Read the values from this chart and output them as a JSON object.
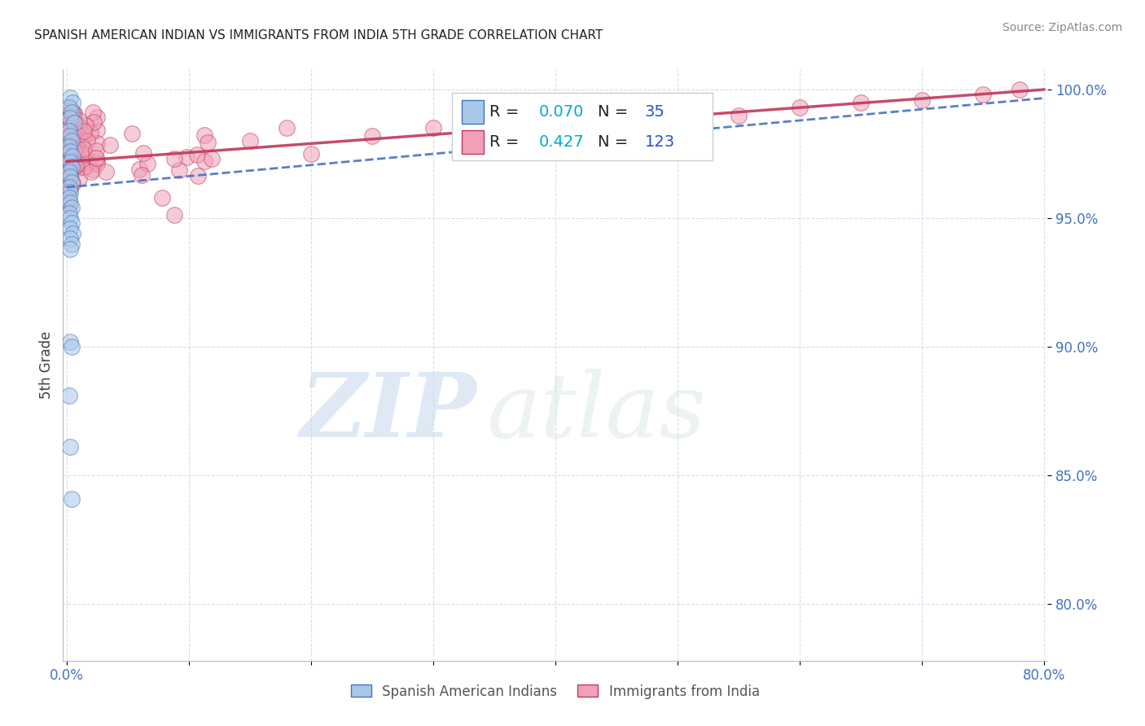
{
  "title": "SPANISH AMERICAN INDIAN VS IMMIGRANTS FROM INDIA 5TH GRADE CORRELATION CHART",
  "source": "Source: ZipAtlas.com",
  "ylabel": "5th Grade",
  "y_ticks": [
    "100.0%",
    "95.0%",
    "90.0%",
    "85.0%",
    "80.0%"
  ],
  "y_tick_vals": [
    1.0,
    0.95,
    0.9,
    0.85,
    0.8
  ],
  "x_lim": [
    -0.003,
    0.803
  ],
  "y_lim": [
    0.778,
    1.008
  ],
  "series1_name": "Spanish American Indians",
  "series2_name": "Immigrants from India",
  "series1_color": "#A8C8E8",
  "series2_color": "#F0A0B8",
  "trendline1_color": "#4472C4",
  "trendline2_color": "#C0385A",
  "background_color": "#FFFFFF",
  "watermark_zip": "ZIP",
  "watermark_atlas": "atlas",
  "r1": "0.070",
  "n1": "35",
  "r2": "0.427",
  "n2": "123",
  "grid_color": "#C8D8E8",
  "tick_color": "#4472C4",
  "ylabel_color": "#404040",
  "source_color": "#888888"
}
